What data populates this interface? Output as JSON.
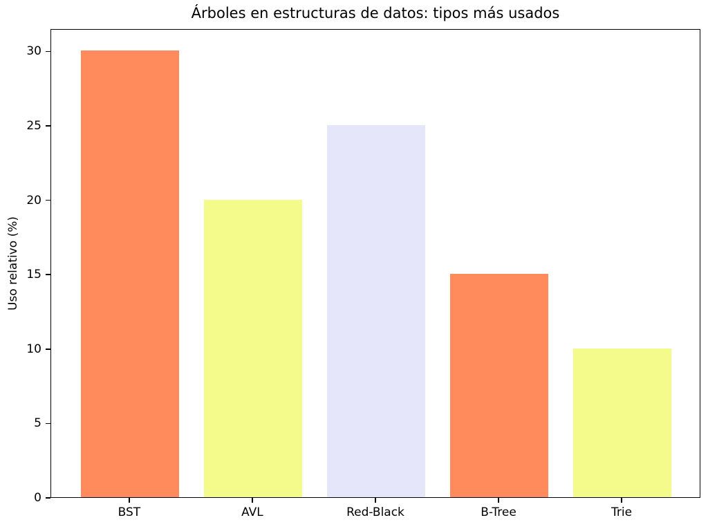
{
  "chart_data": {
    "type": "bar",
    "title": "Árboles en estructuras de datos: tipos más usados",
    "xlabel": "",
    "ylabel": "Uso relativo (%)",
    "categories": [
      "BST",
      "AVL",
      "Red-Black",
      "B-Tree",
      "Trie"
    ],
    "values": [
      30,
      20,
      25,
      15,
      10
    ],
    "bar_colors": [
      "#ff8a5c",
      "#f5fb8b",
      "#e6e6fa",
      "#ff8a5c",
      "#f5fb8b"
    ],
    "yticks": [
      0,
      5,
      10,
      15,
      20,
      25,
      30
    ],
    "ylim": [
      0,
      31.5
    ],
    "xlim": [
      -0.64,
      4.64
    ],
    "bar_width": 0.8,
    "grid": false,
    "legend": "none",
    "axis_color": "#000000",
    "background_color": "#ffffff"
  }
}
